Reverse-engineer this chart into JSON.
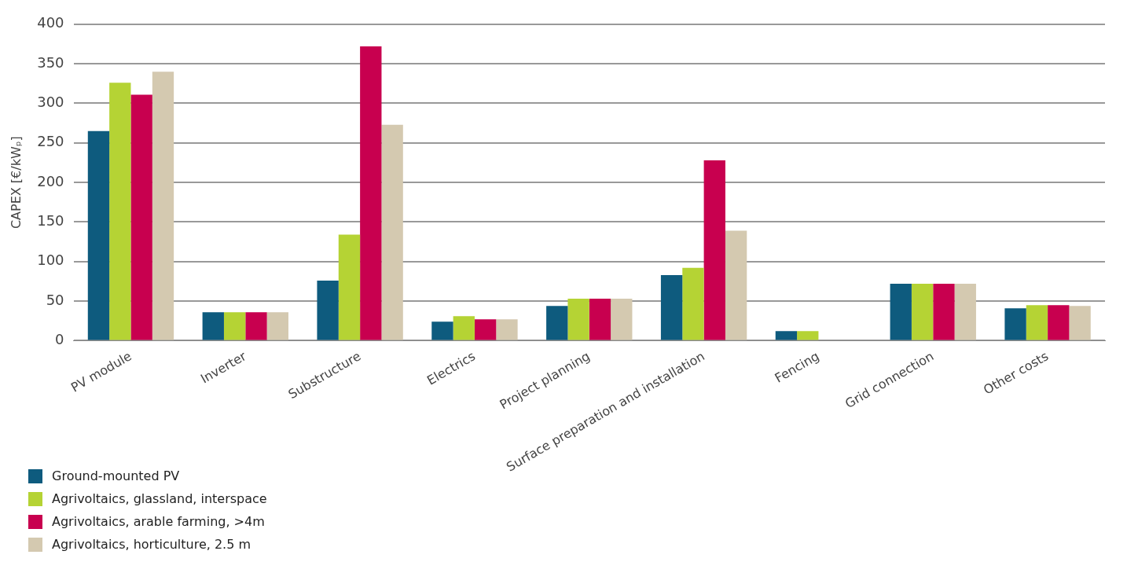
{
  "chart_data": {
    "type": "bar",
    "ylabel": "CAPEX [€/kWₚ]",
    "categories": [
      "PV module",
      "Inverter",
      "Substructure",
      "Electrics",
      "Project planning",
      "Surface preparation and installation",
      "Fencing",
      "Grid connection",
      "Other costs"
    ],
    "series": [
      {
        "name": "Ground-mounted PV",
        "color": "#0e5b7e",
        "values": [
          265,
          36,
          76,
          24,
          44,
          83,
          12,
          72,
          41
        ]
      },
      {
        "name": "Agrivoltaics, glassland, interspace",
        "color": "#b5d334",
        "values": [
          326,
          36,
          134,
          31,
          53,
          92,
          12,
          72,
          45
        ]
      },
      {
        "name": "Agrivoltaics, arable farming, >4m",
        "color": "#c8004f",
        "values": [
          311,
          36,
          372,
          27,
          53,
          228,
          0,
          72,
          45
        ]
      },
      {
        "name": "Agrivoltaics, horticulture, 2.5 m",
        "color": "#d4c9b0",
        "values": [
          340,
          36,
          273,
          27,
          53,
          139,
          0,
          72,
          44
        ]
      }
    ],
    "ylim": [
      0,
      400
    ],
    "yticks": [
      0,
      50,
      100,
      150,
      200,
      250,
      300,
      350,
      400
    ],
    "grid": "y",
    "legend": "bottom left"
  }
}
